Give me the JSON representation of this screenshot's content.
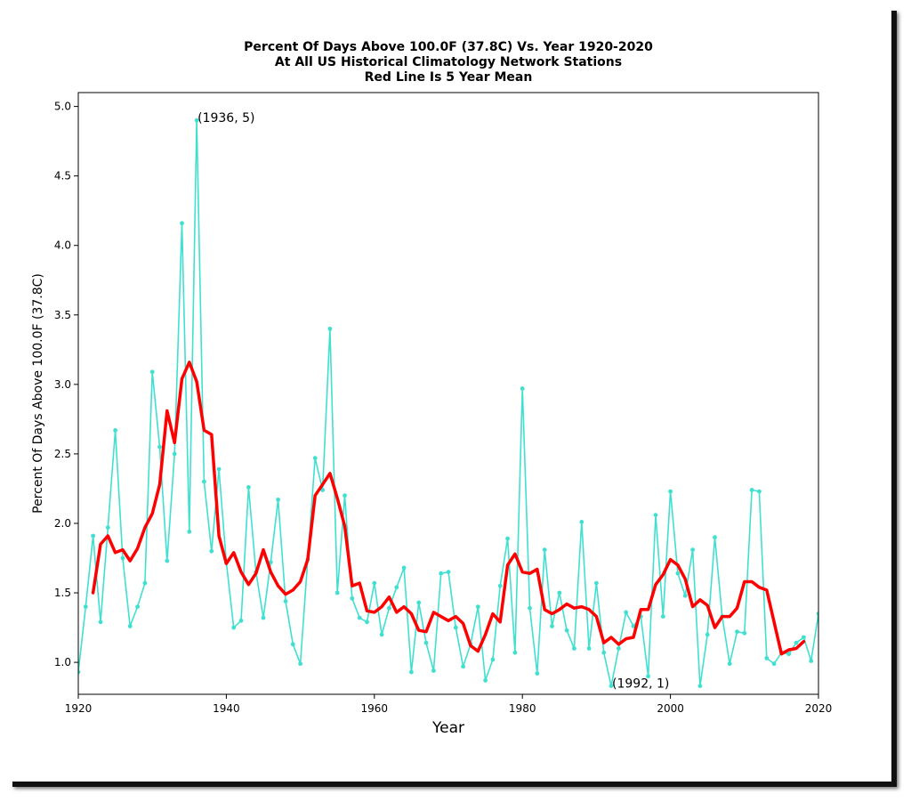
{
  "chart_data": {
    "type": "line",
    "title_lines": [
      "Percent Of Days Above 100.0F (37.8C) Vs. Year 1920-2020",
      "At All US Historical Climatology Network Stations",
      "Red Line Is 5 Year Mean"
    ],
    "xlabel": "Year",
    "ylabel": "Percent Of Days Above 100.0F (37.8C)",
    "xlim": [
      1920,
      2020
    ],
    "ylim": [
      0.77,
      5.1
    ],
    "x_ticks": [
      1920,
      1940,
      1960,
      1980,
      2000,
      2020
    ],
    "y_ticks": [
      1.0,
      1.5,
      2.0,
      2.5,
      3.0,
      3.5,
      4.0,
      4.5,
      5.0
    ],
    "y_tick_labels": [
      "1.0",
      "1.5",
      "2.0",
      "2.5",
      "3.0",
      "3.5",
      "4.0",
      "4.5",
      "5.0"
    ],
    "grid": false,
    "series": [
      {
        "color": "#40e0d0",
        "marker": "dot",
        "x": [
          1920,
          1921,
          1922,
          1923,
          1924,
          1925,
          1926,
          1927,
          1928,
          1929,
          1930,
          1931,
          1932,
          1933,
          1934,
          1935,
          1936,
          1937,
          1938,
          1939,
          1940,
          1941,
          1942,
          1943,
          1944,
          1945,
          1946,
          1947,
          1948,
          1949,
          1950,
          1951,
          1952,
          1953,
          1954,
          1955,
          1956,
          1957,
          1958,
          1959,
          1960,
          1961,
          1962,
          1963,
          1964,
          1965,
          1966,
          1967,
          1968,
          1969,
          1970,
          1971,
          1972,
          1973,
          1974,
          1975,
          1976,
          1977,
          1978,
          1979,
          1980,
          1981,
          1982,
          1983,
          1984,
          1985,
          1986,
          1987,
          1988,
          1989,
          1990,
          1991,
          1992,
          1993,
          1994,
          1995,
          1996,
          1997,
          1998,
          1999,
          2000,
          2001,
          2002,
          2003,
          2004,
          2005,
          2006,
          2007,
          2008,
          2009,
          2010,
          2011,
          2012,
          2013,
          2014,
          2015,
          2016,
          2017,
          2018,
          2019,
          2020
        ],
        "y": [
          0.93,
          1.4,
          1.91,
          1.29,
          1.97,
          2.67,
          1.75,
          1.26,
          1.4,
          1.57,
          3.09,
          2.55,
          1.73,
          2.5,
          4.16,
          1.94,
          4.9,
          2.3,
          1.8,
          2.39,
          1.72,
          1.25,
          1.3,
          2.26,
          1.65,
          1.32,
          1.72,
          2.17,
          1.44,
          1.13,
          0.99,
          1.74,
          2.47,
          2.24,
          3.4,
          1.5,
          2.2,
          1.46,
          1.32,
          1.29,
          1.57,
          1.2,
          1.39,
          1.54,
          1.68,
          0.93,
          1.43,
          1.14,
          0.94,
          1.64,
          1.65,
          1.25,
          0.97,
          1.13,
          1.4,
          0.87,
          1.02,
          1.55,
          1.89,
          1.07,
          2.97,
          1.39,
          0.92,
          1.81,
          1.26,
          1.5,
          1.23,
          1.1,
          2.01,
          1.1,
          1.57,
          1.07,
          0.83,
          1.1,
          1.36,
          1.26,
          1.33,
          0.9,
          2.06,
          1.33,
          2.23,
          1.64,
          1.48,
          1.81,
          0.83,
          1.2,
          1.9,
          1.33,
          0.99,
          1.22,
          1.21,
          2.24,
          2.23,
          1.03,
          0.99,
          1.07,
          1.06,
          1.14,
          1.18,
          1.01,
          1.35
        ]
      },
      {
        "color": "#ff0000",
        "marker": "none",
        "x": [
          1922,
          1923,
          1924,
          1925,
          1926,
          1927,
          1928,
          1929,
          1930,
          1931,
          1932,
          1933,
          1934,
          1935,
          1936,
          1937,
          1938,
          1939,
          1940,
          1941,
          1942,
          1943,
          1944,
          1945,
          1946,
          1947,
          1948,
          1949,
          1950,
          1951,
          1952,
          1953,
          1954,
          1955,
          1956,
          1957,
          1958,
          1959,
          1960,
          1961,
          1962,
          1963,
          1964,
          1965,
          1966,
          1967,
          1968,
          1969,
          1970,
          1971,
          1972,
          1973,
          1974,
          1975,
          1976,
          1977,
          1978,
          1979,
          1980,
          1981,
          1982,
          1983,
          1984,
          1985,
          1986,
          1987,
          1988,
          1989,
          1990,
          1991,
          1992,
          1993,
          1994,
          1995,
          1996,
          1997,
          1998,
          1999,
          2000,
          2001,
          2002,
          2003,
          2004,
          2005,
          2006,
          2007,
          2008,
          2009,
          2010,
          2011,
          2012,
          2013,
          2014,
          2015,
          2016,
          2017,
          2018
        ],
        "y": [
          1.5,
          1.85,
          1.91,
          1.79,
          1.81,
          1.73,
          1.82,
          1.97,
          2.07,
          2.28,
          2.81,
          2.58,
          3.04,
          3.16,
          3.02,
          2.67,
          2.64,
          1.91,
          1.71,
          1.79,
          1.65,
          1.56,
          1.64,
          1.81,
          1.65,
          1.55,
          1.49,
          1.52,
          1.58,
          1.74,
          2.2,
          2.28,
          2.36,
          2.18,
          1.98,
          1.55,
          1.57,
          1.37,
          1.36,
          1.4,
          1.47,
          1.36,
          1.4,
          1.35,
          1.23,
          1.22,
          1.36,
          1.33,
          1.3,
          1.33,
          1.28,
          1.12,
          1.08,
          1.2,
          1.35,
          1.29,
          1.7,
          1.78,
          1.65,
          1.64,
          1.67,
          1.38,
          1.35,
          1.38,
          1.42,
          1.39,
          1.4,
          1.38,
          1.33,
          1.14,
          1.18,
          1.13,
          1.17,
          1.18,
          1.38,
          1.38,
          1.56,
          1.63,
          1.74,
          1.7,
          1.6,
          1.4,
          1.45,
          1.41,
          1.25,
          1.33,
          1.33,
          1.39,
          1.58,
          1.58,
          1.54,
          1.52,
          1.29,
          1.06,
          1.09,
          1.1,
          1.15
        ]
      }
    ],
    "annotations": [
      {
        "text": "(1936, 5)",
        "x": 1936,
        "y": 4.9
      },
      {
        "text": "(1992, 1)",
        "x": 1992,
        "y": 0.83
      }
    ]
  }
}
